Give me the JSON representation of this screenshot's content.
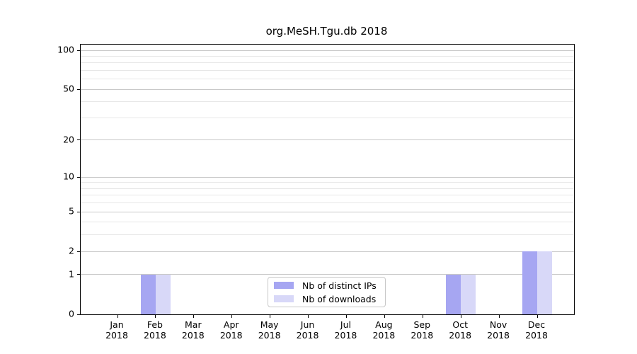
{
  "title": "org.MeSH.Tgu.db 2018",
  "colors": {
    "distinct_ips_bar": "#a6a6f2",
    "downloads_bar": "#d8d8f8",
    "grid_major": "#c8c8c8",
    "grid_minor": "#e7e7e7",
    "axis": "#000000",
    "legend_border": "#c8c8c8",
    "background": "#ffffff"
  },
  "chart_data": {
    "type": "bar",
    "title": "org.MeSH.Tgu.db 2018",
    "categories": [
      "Jan 2018",
      "Feb 2018",
      "Mar 2018",
      "Apr 2018",
      "May 2018",
      "Jun 2018",
      "Jul 2018",
      "Aug 2018",
      "Sep 2018",
      "Oct 2018",
      "Nov 2018",
      "Dec 2018"
    ],
    "series": [
      {
        "name": "Nb of distinct IPs",
        "color": "#a6a6f2",
        "values": [
          0,
          1,
          0,
          0,
          0,
          0,
          0,
          0,
          0,
          1,
          0,
          2
        ]
      },
      {
        "name": "Nb of downloads",
        "color": "#d8d8f8",
        "values": [
          0,
          1,
          0,
          0,
          0,
          0,
          0,
          0,
          0,
          1,
          0,
          2
        ]
      }
    ],
    "xlabel": "",
    "ylabel": "",
    "yscale": "log1p",
    "yticks": [
      0,
      1,
      2,
      5,
      10,
      20,
      50,
      100
    ],
    "yticks_minor": [
      3,
      4,
      6,
      7,
      8,
      9,
      30,
      40,
      60,
      70,
      80,
      90
    ],
    "ylim": [
      0,
      110
    ],
    "grid": "horizontal",
    "legend_position": "bottom-center-inside"
  },
  "legend": {
    "items": [
      {
        "label": "Nb of distinct IPs"
      },
      {
        "label": "Nb of downloads"
      }
    ]
  }
}
